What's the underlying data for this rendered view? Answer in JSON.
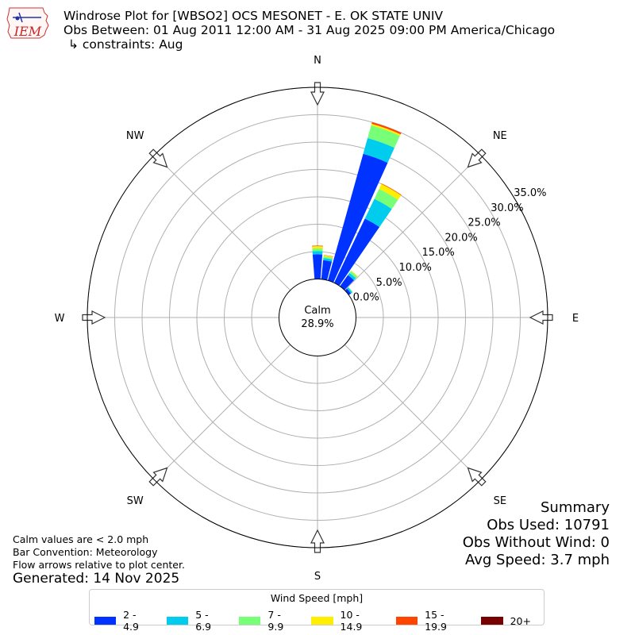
{
  "header": {
    "logo_text": "IEM",
    "title_line1": "Windrose Plot for [WBSO2] OCS MESONET - E. OK STATE UNIV",
    "title_line2": "Obs Between: 01 Aug 2011 12:00 AM - 31 Aug 2025 09:00 PM America/Chicago",
    "title_line3": "↳ constraints: Aug"
  },
  "chart_data": {
    "type": "windrose",
    "calm": {
      "label": "Calm",
      "value_text": "28.9%",
      "value": 28.9
    },
    "directions": [
      {
        "label": "N",
        "angle": 0
      },
      {
        "label": "NE",
        "angle": 45
      },
      {
        "label": "E",
        "angle": 90
      },
      {
        "label": "SE",
        "angle": 135
      },
      {
        "label": "S",
        "angle": 180
      },
      {
        "label": "SW",
        "angle": 225
      },
      {
        "label": "W",
        "angle": 270
      },
      {
        "label": "NW",
        "angle": 315
      }
    ],
    "radial_ticks": [
      "0.0%",
      "5.0%",
      "10.0%",
      "15.0%",
      "20.0%",
      "25.0%",
      "30.0%",
      "35.0%"
    ],
    "radial_tick_values": [
      0,
      5,
      10,
      15,
      20,
      25,
      30,
      35
    ],
    "rmax": 35,
    "speed_bins": [
      {
        "label": "2 - 4.9",
        "color": "#0033ff"
      },
      {
        "label": "5 - 6.9",
        "color": "#00ccee"
      },
      {
        "label": "7 - 9.9",
        "color": "#77ff77"
      },
      {
        "label": "10 - 14.9",
        "color": "#ffee00"
      },
      {
        "label": "15 - 19.9",
        "color": "#ff4400"
      },
      {
        "label": "20+",
        "color": "#770000"
      }
    ],
    "bars": [
      {
        "direction_deg": 0,
        "values": [
          4.5,
          0.6,
          0.5,
          0.4,
          0.1,
          0
        ]
      },
      {
        "direction_deg": 10,
        "values": [
          3.5,
          0.4,
          0.3,
          0.2,
          0.05,
          0
        ]
      },
      {
        "direction_deg": 20,
        "values": [
          24.0,
          3.0,
          2.4,
          0.3,
          0.3,
          0
        ]
      },
      {
        "direction_deg": 30,
        "values": [
          13.0,
          4.0,
          2.0,
          1.0,
          0.1,
          0
        ]
      },
      {
        "direction_deg": 40,
        "values": [
          2.5,
          0.5,
          0.4,
          0.1,
          0,
          0
        ]
      },
      {
        "direction_deg": 50,
        "values": [
          0.5,
          0.3,
          0.1,
          0,
          0,
          0
        ]
      }
    ],
    "legend_title": "Wind Speed [mph]"
  },
  "notes": {
    "line1": "Calm values are < 2.0 mph",
    "line2": "Bar Convention: Meteorology",
    "line3": "Flow arrows relative to plot center.",
    "generated": "Generated: 14 Nov 2025"
  },
  "summary": {
    "title": "Summary",
    "obs_used": "Obs Used: 10791",
    "obs_without_wind": "Obs Without Wind: 0",
    "avg_speed": "Avg Speed: 3.7 mph"
  }
}
